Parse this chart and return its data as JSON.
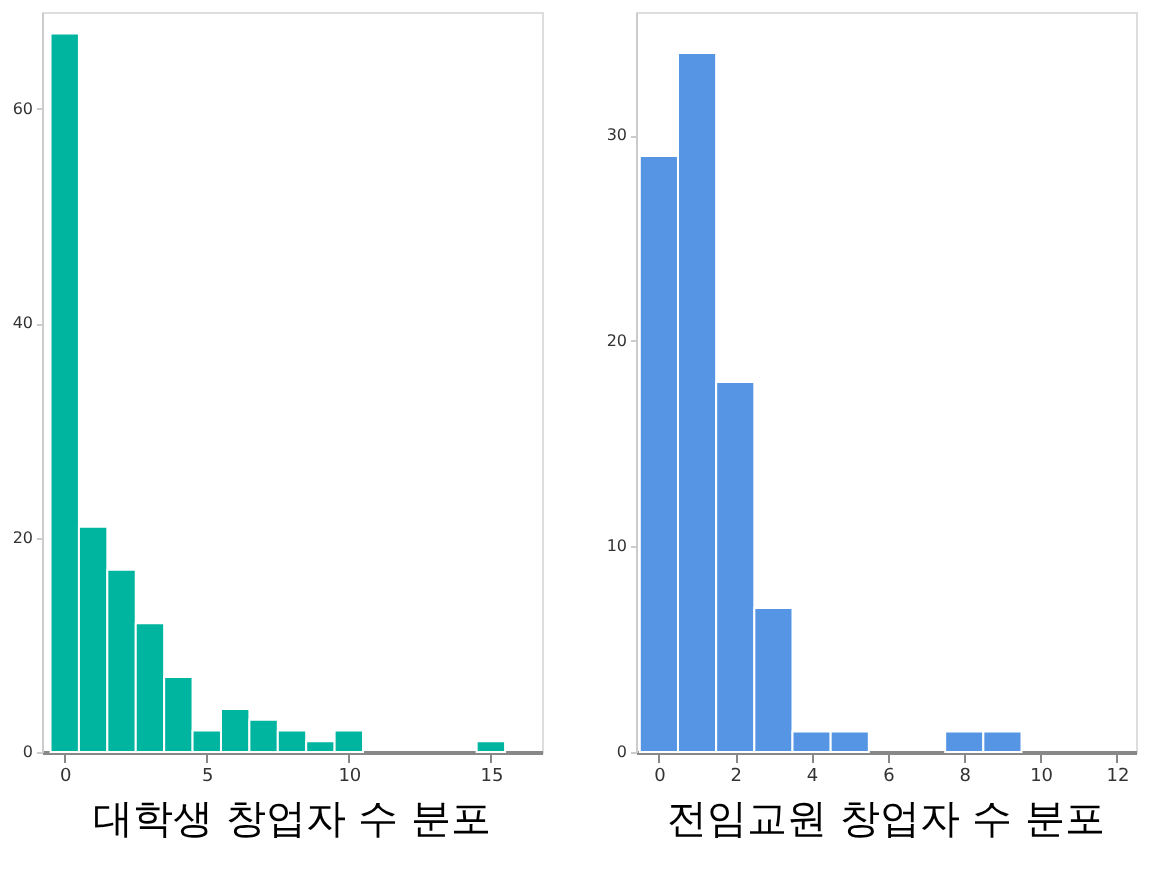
{
  "chart_data": [
    {
      "type": "histogram",
      "title": "대학생 창업자 수 분포",
      "bins": [
        -0.5,
        0.5,
        1.5,
        2.5,
        3.5,
        4.5,
        5.5,
        6.5,
        7.5,
        8.5,
        9.5,
        10.5,
        11.5,
        12.5,
        13.5,
        14.5,
        15.5
      ],
      "values": [
        67,
        21,
        17,
        12,
        7,
        2,
        4,
        3,
        2,
        1,
        2,
        0,
        0,
        0,
        0,
        1
      ],
      "color": "#00b5a0",
      "xlim": [
        -0.8,
        16.8
      ],
      "xticks": [
        0,
        5,
        10,
        15
      ],
      "ylim": [
        0,
        69
      ],
      "yticks": [
        0,
        20,
        40,
        60
      ],
      "grid": false
    },
    {
      "type": "histogram",
      "title": "전임교원 창업자 수 분포",
      "bins": [
        -0.5,
        0.5,
        1.5,
        2.5,
        3.5,
        4.5,
        5.5,
        6.5,
        7.5,
        8.5,
        9.5
      ],
      "values": [
        29,
        34,
        18,
        7,
        1,
        1,
        0,
        0,
        1,
        1
      ],
      "color": "#5595e4",
      "xlim": [
        -0.6,
        12.5
      ],
      "xticks": [
        0,
        2,
        4,
        6,
        8,
        10,
        12
      ],
      "ylim": [
        0,
        36
      ],
      "yticks": [
        0,
        10,
        20,
        30
      ],
      "grid": false
    }
  ]
}
